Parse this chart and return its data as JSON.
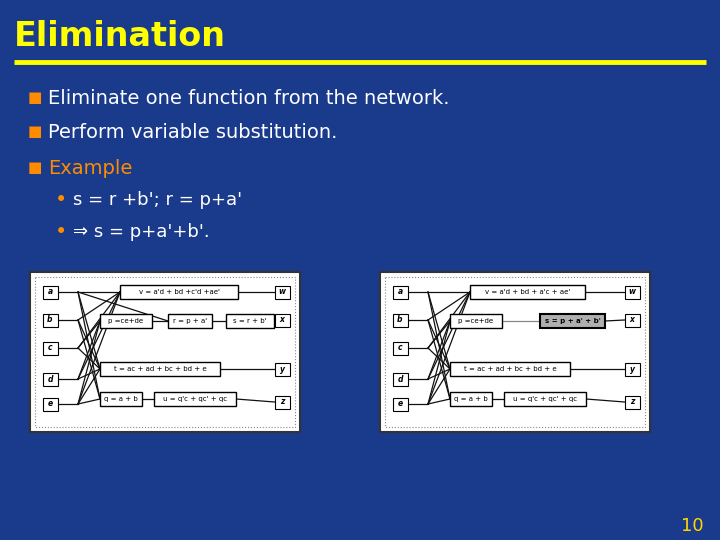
{
  "title": "Elimination",
  "title_color": "#FFFF00",
  "title_fontsize": 24,
  "bg_color": "#1a3a8c",
  "line_color": "#FFFF00",
  "bullet_color": "#FF8C00",
  "text_color": "#FFFFFF",
  "example_color": "#FF8C00",
  "bullet_char": "■",
  "sub_bullet_char": "•",
  "bullets": [
    "Eliminate one function from the network.",
    "Perform variable substitution.",
    "Example"
  ],
  "sub_bullets": [
    "s = r +b'; r = p+a'",
    "⇒ s = p+a'+b'."
  ],
  "page_number": "10",
  "diagram_bg": "#FFFFFF",
  "diagram_border": "#555555"
}
